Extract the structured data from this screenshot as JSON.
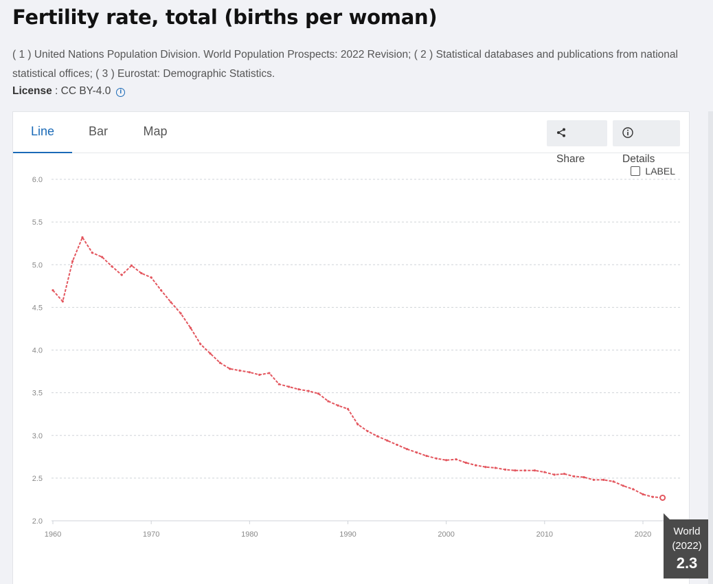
{
  "page": {
    "title": "Fertility rate, total (births per woman)",
    "sources": "( 1 ) United Nations Population Division. World Population Prospects: 2022 Revision; ( 2 ) Statistical databases and publications from national statistical offices; ( 3 ) Eurostat: Demographic Statistics.",
    "license_label": "License",
    "license_value": " : CC BY-4.0"
  },
  "tabs": [
    {
      "label": "Line",
      "active": true
    },
    {
      "label": "Bar",
      "active": false
    },
    {
      "label": "Map",
      "active": false
    }
  ],
  "toolbar": {
    "share_label": "Share",
    "details_label": "Details",
    "label_toggle": "LABEL"
  },
  "tooltip": {
    "country": "World",
    "year": "(2022)",
    "value": "2.3"
  },
  "colors": {
    "series": "#e3565e",
    "accent": "#1a6ab7"
  },
  "chart_data": {
    "type": "line",
    "title": "",
    "xlabel": "",
    "ylabel": "",
    "xlim": [
      1960,
      2022
    ],
    "ylim": [
      2.0,
      6.0
    ],
    "y_ticks": [
      "6.0",
      "5.5",
      "5.0",
      "4.5",
      "4.0",
      "3.5",
      "3.0",
      "2.5",
      "2.0"
    ],
    "x_ticks": [
      "1960",
      "1970",
      "1980",
      "1990",
      "2000",
      "2010",
      "2020"
    ],
    "grid": true,
    "series": [
      {
        "name": "World",
        "x": [
          1960,
          1961,
          1962,
          1963,
          1964,
          1965,
          1966,
          1967,
          1968,
          1969,
          1970,
          1971,
          1972,
          1973,
          1974,
          1975,
          1976,
          1977,
          1978,
          1979,
          1980,
          1981,
          1982,
          1983,
          1984,
          1985,
          1986,
          1987,
          1988,
          1989,
          1990,
          1991,
          1992,
          1993,
          1994,
          1995,
          1996,
          1997,
          1998,
          1999,
          2000,
          2001,
          2002,
          2003,
          2004,
          2005,
          2006,
          2007,
          2008,
          2009,
          2010,
          2011,
          2012,
          2013,
          2014,
          2015,
          2016,
          2017,
          2018,
          2019,
          2020,
          2021,
          2022
        ],
        "y": [
          4.7,
          4.57,
          5.04,
          5.32,
          5.14,
          5.09,
          4.98,
          4.88,
          4.99,
          4.9,
          4.85,
          4.7,
          4.56,
          4.43,
          4.26,
          4.07,
          3.96,
          3.85,
          3.78,
          3.76,
          3.74,
          3.71,
          3.73,
          3.6,
          3.57,
          3.54,
          3.52,
          3.49,
          3.4,
          3.35,
          3.31,
          3.13,
          3.05,
          2.99,
          2.94,
          2.89,
          2.84,
          2.8,
          2.76,
          2.73,
          2.71,
          2.72,
          2.68,
          2.65,
          2.63,
          2.62,
          2.6,
          2.59,
          2.59,
          2.59,
          2.57,
          2.54,
          2.55,
          2.52,
          2.51,
          2.48,
          2.48,
          2.46,
          2.41,
          2.37,
          2.31,
          2.28,
          2.27
        ]
      }
    ]
  }
}
